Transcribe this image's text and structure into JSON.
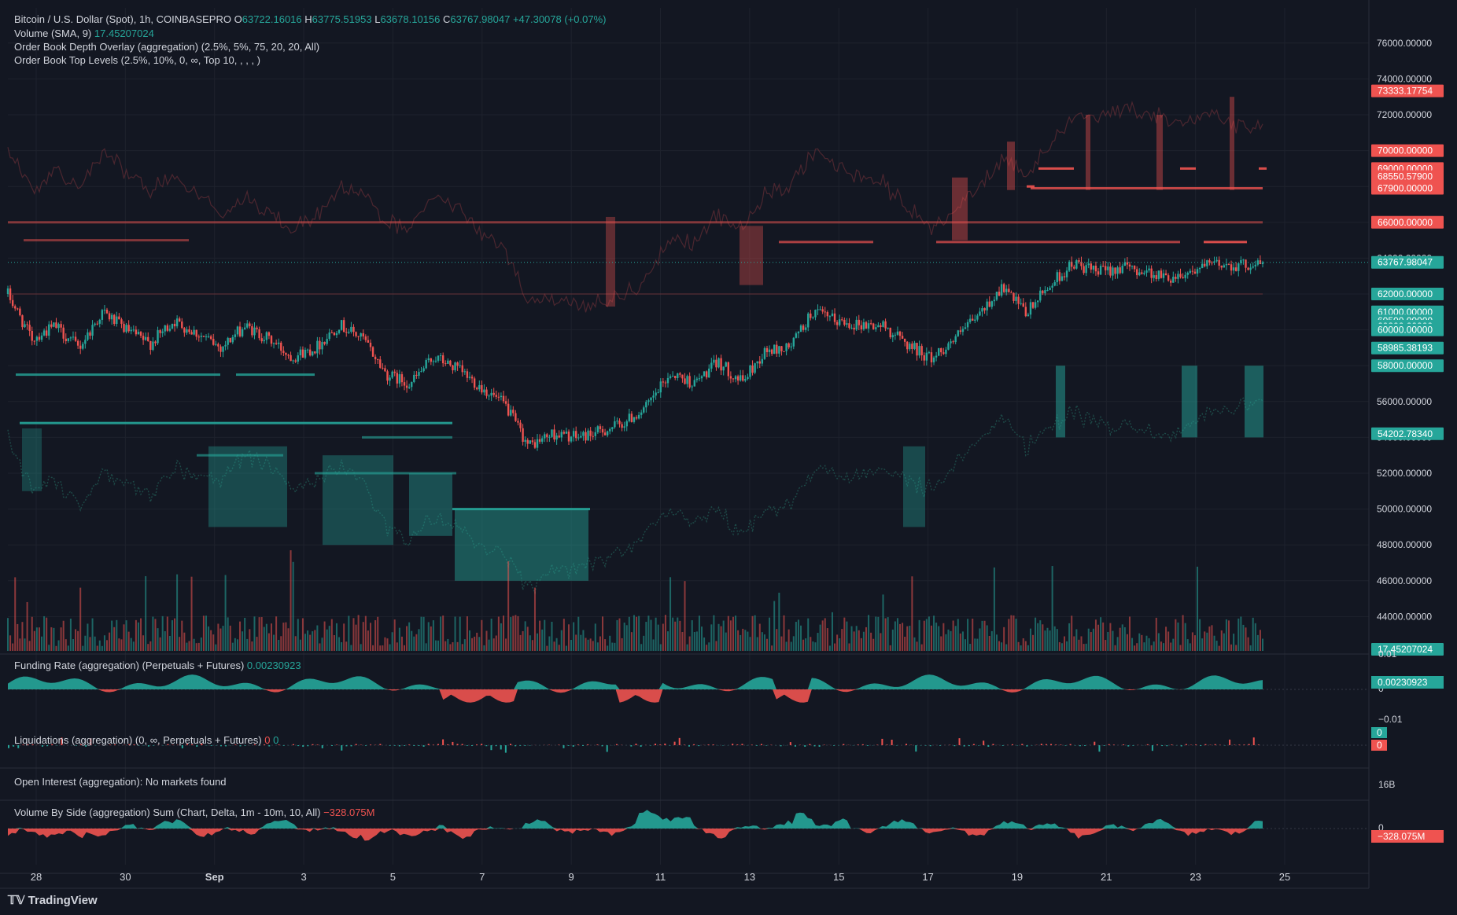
{
  "legend": {
    "main_title": "Bitcoin / U.S. Dollar (Spot), 1h, COINBASEPRO",
    "o_label": "O",
    "o_val": "63722.16016",
    "h_label": "H",
    "h_val": "63775.51953",
    "l_label": "L",
    "l_val": "63678.10156",
    "c_label": "C",
    "c_val": "63767.98047",
    "change": "+47.30078 (+0.07%)",
    "volume_title": "Volume (SMA, 9)",
    "volume_val": "17.45207024",
    "depth_title": "Order Book Depth Overlay (aggregation) (2.5%, 5%, 75, 20, 20, All)",
    "toplevels_title": "Order Book Top Levels (2.5%, 10%, 0, ∞, Top 10, , , , )",
    "funding_title": "Funding Rate (aggregation) (Perpetuals + Futures)",
    "funding_val": "0.00230923",
    "liq_title": "Liquidations (aggregation) (0, ∞, Perpetuals + Futures)",
    "liq_val_red": "0",
    "liq_val_green": "0",
    "oi_title": "Open Interest (aggregation): No markets found",
    "vbs_title": "Volume By Side (aggregation) Sum (Chart, Delta, 1m - 10m, 10, All)",
    "vbs_val": "−328.075M"
  },
  "watermark": "TradingView",
  "colors": {
    "bg": "#131722",
    "grid": "#1e222d",
    "up": "#26a69a",
    "down": "#ef5350",
    "text": "#d1d4dc"
  },
  "chart_data": {
    "type": "candlestick",
    "x_labels": [
      "28",
      "30",
      "Sep",
      "3",
      "5",
      "7",
      "9",
      "11",
      "13",
      "15",
      "17",
      "19",
      "21",
      "23",
      "25"
    ],
    "price_ticks": [
      "76000.00000",
      "74000.00000",
      "72000.00000",
      "70000.00000",
      "68000.00000",
      "66000.00000",
      "64000.00000",
      "62000.00000",
      "60000.00000",
      "58000.00000",
      "56000.00000",
      "54000.00000",
      "52000.00000",
      "50000.00000",
      "48000.00000",
      "46000.00000",
      "44000.00000"
    ],
    "ylim": [
      42000,
      77000
    ],
    "price_path": [
      [
        0,
        62000
      ],
      [
        1,
        59500
      ],
      [
        2,
        60200
      ],
      [
        3,
        59000
      ],
      [
        4,
        61000
      ],
      [
        5,
        60000
      ],
      [
        6,
        59200
      ],
      [
        7,
        60500
      ],
      [
        8,
        59800
      ],
      [
        9,
        59000
      ],
      [
        10,
        60200
      ],
      [
        11,
        59500
      ],
      [
        12,
        58500
      ],
      [
        13,
        59000
      ],
      [
        14,
        60300
      ],
      [
        15,
        59500
      ],
      [
        16,
        57500
      ],
      [
        17,
        57000
      ],
      [
        18,
        58500
      ],
      [
        19,
        57800
      ],
      [
        20,
        56800
      ],
      [
        21,
        55800
      ],
      [
        22,
        53500
      ],
      [
        23,
        54200
      ],
      [
        24,
        54000
      ],
      [
        25,
        54300
      ],
      [
        26,
        54800
      ],
      [
        27,
        55700
      ],
      [
        28,
        57600
      ],
      [
        29,
        57000
      ],
      [
        30,
        58200
      ],
      [
        31,
        57100
      ],
      [
        32,
        58800
      ],
      [
        33,
        59000
      ],
      [
        34,
        61000
      ],
      [
        35,
        60500
      ],
      [
        36,
        60300
      ],
      [
        37,
        60200
      ],
      [
        38,
        59200
      ],
      [
        39,
        58400
      ],
      [
        40,
        59500
      ],
      [
        41,
        60800
      ],
      [
        42,
        62400
      ],
      [
        43,
        60900
      ],
      [
        44,
        62500
      ],
      [
        45,
        63700
      ],
      [
        46,
        63200
      ],
      [
        47,
        63500
      ],
      [
        48,
        63300
      ],
      [
        49,
        62900
      ],
      [
        50,
        63300
      ],
      [
        51,
        63700
      ],
      [
        52,
        63600
      ],
      [
        53,
        63700
      ]
    ],
    "price_labels": [
      {
        "text": "73333.17754",
        "y": 73333.18,
        "color": "#ef5350"
      },
      {
        "text": "70000.00000",
        "y": 70000,
        "color": "#ef5350"
      },
      {
        "text": "69000.00000",
        "y": 69000,
        "color": "#ef5350"
      },
      {
        "text": "68550.57900",
        "y": 68550.58,
        "color": "#ef5350"
      },
      {
        "text": "68000.00000",
        "y": 68000,
        "color": "#ef5350"
      },
      {
        "text": "67900.00000",
        "y": 67900,
        "color": "#ef5350"
      },
      {
        "text": "66000.00000",
        "y": 66000,
        "color": "#ef5350"
      },
      {
        "text": "63767.98047",
        "y": 63767.98,
        "color": "#26a69a"
      },
      {
        "text": "62000.00000",
        "y": 62000,
        "color": "#26a69a"
      },
      {
        "text": "61000.00000",
        "y": 61000,
        "color": "#26a69a"
      },
      {
        "text": "60500.00000",
        "y": 60500,
        "color": "#26a69a"
      },
      {
        "text": "60200.00000",
        "y": 60200,
        "color": "#26a69a"
      },
      {
        "text": "60000.00000",
        "y": 60000,
        "color": "#26a69a"
      },
      {
        "text": "58985.38193",
        "y": 58985.38,
        "color": "#26a69a"
      },
      {
        "text": "58000.00000",
        "y": 58000,
        "color": "#26a69a"
      },
      {
        "text": "54202.78340",
        "y": 54202.78,
        "color": "#26a69a"
      },
      {
        "text": "17.45207024",
        "y": 42200,
        "color": "#26a69a"
      }
    ],
    "funding": {
      "ticks": [
        "0.01",
        "0",
        "−0.01"
      ],
      "label": "0.00230923"
    },
    "liq": {
      "labels": [
        "0",
        "0"
      ]
    },
    "oi": {
      "tick": "16B"
    },
    "vbs": {
      "tick": "0",
      "label": "−328.075M"
    }
  }
}
